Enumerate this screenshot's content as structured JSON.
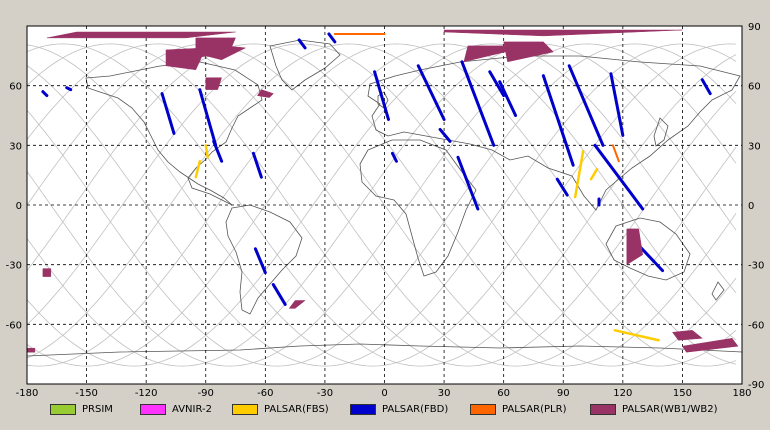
{
  "map": {
    "lon_ticks": [
      -180,
      -150,
      -120,
      -90,
      -60,
      -30,
      0,
      30,
      60,
      90,
      120,
      150,
      180
    ],
    "lat_ticks_right": [
      90,
      60,
      30,
      0,
      -30,
      -60,
      -90
    ],
    "lat_ticks_left": [
      60,
      30,
      0,
      -30,
      -60
    ],
    "background": "#ffffff",
    "coastline_color": "#555555",
    "orbit_color": "#c0c0c0",
    "grid": "dashed"
  },
  "legend": [
    {
      "label": "PRSIM",
      "color": "#99cc33"
    },
    {
      "label": "AVNIR-2",
      "color": "#ff33ff"
    },
    {
      "label": "PALSAR(FBS)",
      "color": "#ffcc00"
    },
    {
      "label": "PALSAR(FBD)",
      "color": "#0000cc"
    },
    {
      "label": "PALSAR(PLR)",
      "color": "#ff6600"
    },
    {
      "label": "PALSAR(WB1/WB2)",
      "color": "#993366"
    }
  ],
  "acquisitions": {
    "fbd": [
      [
        [
          -172,
          57
        ],
        [
          -170,
          55
        ]
      ],
      [
        [
          -160,
          59
        ],
        [
          -158,
          58
        ]
      ],
      [
        [
          -112,
          56
        ],
        [
          -106,
          36
        ]
      ],
      [
        [
          -93,
          58
        ],
        [
          -85,
          30
        ]
      ],
      [
        [
          -86,
          32
        ],
        [
          -82,
          22
        ]
      ],
      [
        [
          -66,
          26
        ],
        [
          -62,
          14
        ]
      ],
      [
        [
          -65,
          -22
        ],
        [
          -60,
          -34
        ]
      ],
      [
        [
          -56,
          -40
        ],
        [
          -50,
          -50
        ]
      ],
      [
        [
          -43,
          83
        ],
        [
          -40,
          79
        ]
      ],
      [
        [
          -28,
          86
        ],
        [
          -25,
          82
        ]
      ],
      [
        [
          -5,
          67
        ],
        [
          2,
          43
        ]
      ],
      [
        [
          4,
          26
        ],
        [
          6,
          22
        ]
      ],
      [
        [
          17,
          70
        ],
        [
          30,
          43
        ]
      ],
      [
        [
          28,
          38
        ],
        [
          33,
          32
        ]
      ],
      [
        [
          39,
          72
        ],
        [
          55,
          30
        ]
      ],
      [
        [
          37,
          24
        ],
        [
          47,
          -2
        ]
      ],
      [
        [
          53,
          67
        ],
        [
          60,
          55
        ]
      ],
      [
        [
          58,
          62
        ],
        [
          66,
          45
        ]
      ],
      [
        [
          80,
          65
        ],
        [
          95,
          20
        ]
      ],
      [
        [
          93,
          70
        ],
        [
          110,
          30
        ]
      ],
      [
        [
          87,
          13
        ],
        [
          92,
          5
        ]
      ],
      [
        [
          108,
          3
        ],
        [
          108,
          0
        ]
      ],
      [
        [
          114,
          66
        ],
        [
          120,
          35
        ]
      ],
      [
        [
          106,
          30
        ],
        [
          130,
          -2
        ]
      ],
      [
        [
          123,
          -15
        ],
        [
          140,
          -33
        ]
      ],
      [
        [
          160,
          63
        ],
        [
          164,
          56
        ]
      ]
    ],
    "fbs": [
      [
        [
          -93,
          22
        ],
        [
          -95,
          14
        ]
      ],
      [
        [
          -90,
          30
        ],
        [
          -89,
          24
        ]
      ],
      [
        [
          100,
          27
        ],
        [
          96,
          4
        ]
      ],
      [
        [
          107,
          18
        ],
        [
          104,
          13
        ]
      ],
      [
        [
          116,
          -63
        ],
        [
          138,
          -68
        ]
      ]
    ],
    "plr": [
      [
        [
          -25,
          86
        ],
        [
          0,
          86
        ]
      ],
      [
        [
          115,
          30
        ],
        [
          118,
          22
        ]
      ]
    ],
    "wb": [
      [
        [
          -170,
          84
        ],
        [
          -100,
          84
        ],
        [
          -75,
          87
        ],
        [
          -155,
          87
        ]
      ],
      [
        [
          -95,
          84
        ],
        [
          -75,
          84
        ],
        [
          -78,
          77
        ],
        [
          -95,
          74
        ]
      ],
      [
        [
          -80,
          80
        ],
        [
          -70,
          79
        ],
        [
          -82,
          73
        ],
        [
          -90,
          75
        ]
      ],
      [
        [
          -110,
          78
        ],
        [
          -90,
          79
        ],
        [
          -95,
          68
        ],
        [
          -110,
          70
        ]
      ],
      [
        [
          -90,
          64
        ],
        [
          -82,
          64
        ],
        [
          -84,
          58
        ],
        [
          -90,
          58
        ]
      ],
      [
        [
          -62,
          58
        ],
        [
          -56,
          56
        ],
        [
          -58,
          54
        ],
        [
          -64,
          55
        ]
      ],
      [
        [
          30,
          87
        ],
        [
          80,
          85
        ],
        [
          150,
          88
        ],
        [
          30,
          88
        ]
      ],
      [
        [
          42,
          80
        ],
        [
          60,
          80
        ],
        [
          65,
          78
        ],
        [
          40,
          72
        ]
      ],
      [
        [
          60,
          82
        ],
        [
          80,
          82
        ],
        [
          85,
          77
        ],
        [
          62,
          72
        ]
      ],
      [
        [
          -172,
          -32
        ],
        [
          -168,
          -32
        ],
        [
          -168,
          -36
        ],
        [
          -172,
          -36
        ]
      ],
      [
        [
          -45,
          -48
        ],
        [
          -40,
          -48
        ],
        [
          -45,
          -52
        ],
        [
          -48,
          -52
        ]
      ],
      [
        [
          145,
          -64
        ],
        [
          155,
          -63
        ],
        [
          160,
          -67
        ],
        [
          148,
          -68
        ]
      ],
      [
        [
          150,
          -71
        ],
        [
          175,
          -67
        ],
        [
          178,
          -71
        ],
        [
          152,
          -74
        ]
      ],
      [
        [
          122,
          -12
        ],
        [
          128,
          -12
        ],
        [
          130,
          -25
        ],
        [
          122,
          -30
        ]
      ],
      [
        [
          -180,
          -72
        ],
        [
          -176,
          -72
        ],
        [
          -176,
          -74
        ],
        [
          -180,
          -74
        ]
      ]
    ]
  }
}
